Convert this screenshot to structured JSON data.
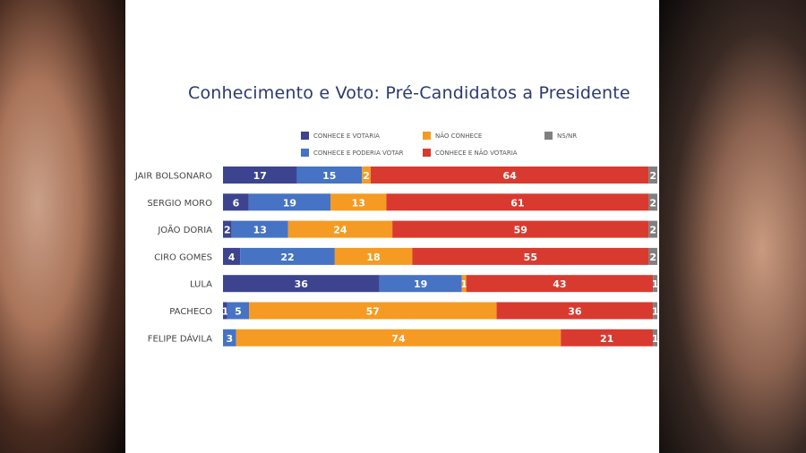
{
  "chart_data": {
    "type": "bar",
    "orientation": "horizontal",
    "stacked": true,
    "title": "Conhecimento e Voto: Pré-Candidatos a Presidente",
    "categories": [
      "JAIR BOLSONARO",
      "SERGIO MORO",
      "JOÃO DORIA",
      "CIRO GOMES",
      "LULA",
      "PACHECO",
      "FELIPE DÁVILA"
    ],
    "series": [
      {
        "name": "CONHECE E VOTARIA",
        "color": "#3c4490",
        "values": [
          17,
          6,
          2,
          4,
          36,
          1,
          0
        ]
      },
      {
        "name": "CONHECE E PODERIA VOTAR",
        "color": "#4673c4",
        "values": [
          15,
          19,
          13,
          22,
          19,
          5,
          3
        ]
      },
      {
        "name": "NÃO CONHECE",
        "color": "#f59b23",
        "values": [
          2,
          13,
          24,
          18,
          1,
          57,
          74
        ]
      },
      {
        "name": "CONHECE E NÃO VOTARIA",
        "color": "#d93a2f",
        "values": [
          64,
          61,
          59,
          55,
          43,
          36,
          21
        ]
      },
      {
        "name": "NS/NR",
        "color": "#808080",
        "values": [
          2,
          2,
          2,
          2,
          1,
          1,
          1
        ]
      }
    ],
    "legend_position": "top",
    "xlim": [
      0,
      100
    ],
    "grid": false
  }
}
